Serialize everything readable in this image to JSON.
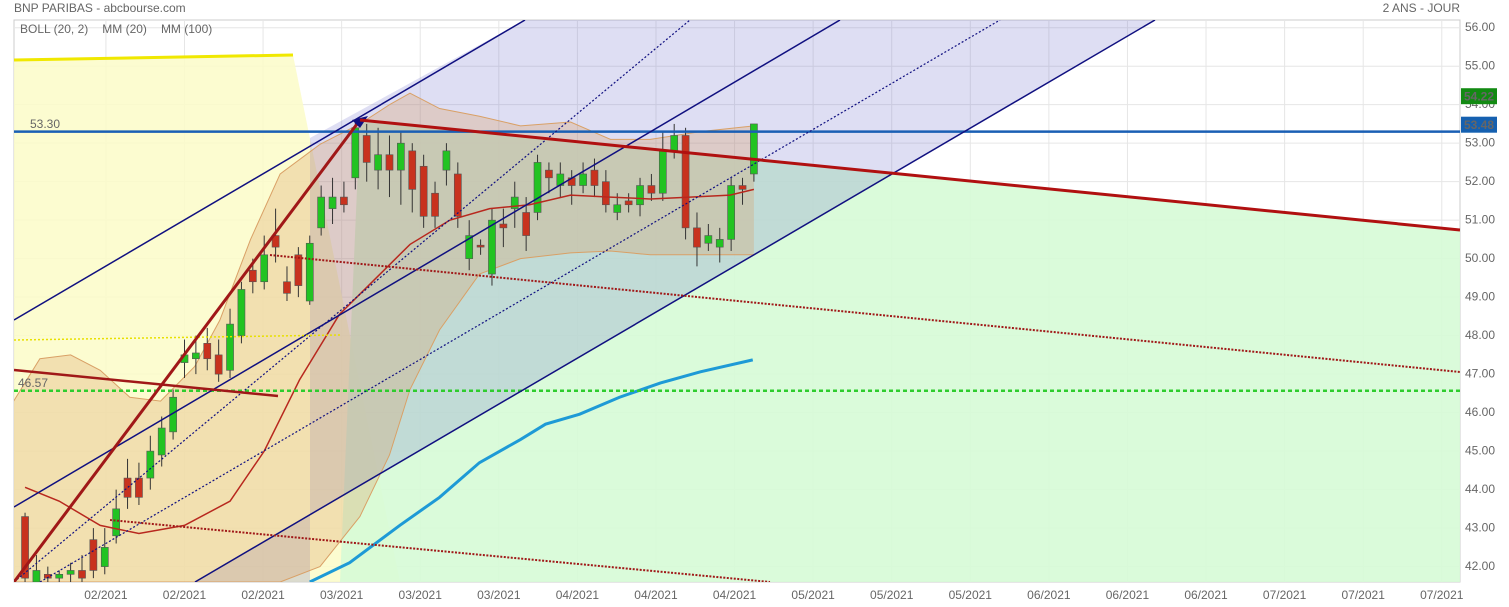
{
  "chart_data": {
    "type": "candlestick",
    "title": "BNP PARIBAS - abcbourse.com",
    "subtitle": "2 ANS - JOUR",
    "up_color": "#22c322",
    "down_color": "#c8321e",
    "open": [
      43.3,
      41.6,
      41.8,
      41.7,
      41.8,
      41.9,
      42.7,
      42.0,
      42.8,
      44.3,
      44.3,
      44.3,
      44.9,
      45.5,
      47.3,
      47.4,
      47.8,
      47.5,
      47.1,
      48.0,
      49.7,
      49.4,
      50.6,
      49.4,
      50.1,
      48.9,
      50.8,
      51.3,
      51.6,
      52.1,
      53.2,
      52.3,
      52.7,
      52.3,
      52.8,
      52.4,
      51.7,
      52.3,
      52.2,
      50.0,
      50.35,
      49.6,
      50.9,
      51.3,
      51.2,
      51.2,
      52.3,
      51.9,
      52.1,
      51.9,
      52.3,
      52.0,
      51.2,
      51.5,
      51.4,
      51.9,
      51.7,
      52.8,
      53.2,
      50.8,
      50.4,
      50.3,
      50.5,
      51.9,
      52.2
    ],
    "high": [
      43.4,
      42.3,
      42.0,
      41.9,
      42.1,
      42.3,
      43.0,
      43.0,
      44.0,
      44.8,
      44.7,
      45.4,
      45.9,
      46.6,
      47.9,
      48.0,
      48.2,
      47.9,
      48.7,
      49.4,
      50.0,
      50.6,
      51.3,
      49.8,
      50.3,
      50.6,
      51.9,
      52.1,
      52.0,
      53.6,
      53.5,
      53.4,
      53.2,
      53.3,
      53.0,
      52.7,
      52.0,
      53.0,
      52.5,
      51.0,
      50.5,
      51.3,
      51.3,
      52.0,
      51.6,
      52.7,
      52.5,
      52.5,
      52.3,
      52.5,
      52.6,
      52.3,
      51.7,
      51.7,
      52.1,
      52.2,
      53.3,
      53.5,
      53.4,
      51.2,
      50.9,
      50.8,
      52.1,
      52.1,
      53.5
    ],
    "low": [
      41.6,
      41.6,
      41.6,
      41.6,
      41.6,
      41.6,
      41.7,
      41.8,
      42.6,
      43.5,
      43.6,
      44.0,
      44.6,
      45.3,
      46.9,
      47.0,
      47.1,
      46.8,
      46.9,
      47.8,
      49.1,
      49.2,
      49.9,
      48.9,
      49.0,
      48.8,
      50.6,
      50.9,
      51.2,
      51.8,
      52.0,
      51.8,
      51.6,
      51.4,
      51.2,
      50.8,
      50.8,
      51.9,
      50.8,
      49.7,
      50.1,
      49.3,
      50.3,
      50.8,
      50.2,
      51.0,
      51.7,
      51.6,
      51.4,
      51.7,
      51.6,
      51.2,
      51.0,
      51.2,
      51.1,
      51.5,
      51.5,
      52.6,
      50.5,
      49.8,
      50.2,
      49.9,
      50.2,
      51.4,
      52.0
    ],
    "close": [
      41.7,
      41.9,
      41.7,
      41.8,
      41.9,
      41.7,
      41.9,
      42.5,
      43.5,
      43.8,
      43.8,
      45.0,
      45.6,
      46.4,
      47.5,
      47.55,
      47.4,
      47.0,
      48.3,
      49.2,
      49.4,
      50.1,
      50.3,
      49.1,
      49.3,
      50.4,
      51.6,
      51.6,
      51.4,
      53.4,
      52.5,
      52.7,
      52.3,
      53.0,
      51.8,
      51.1,
      51.1,
      52.8,
      51.1,
      50.6,
      50.3,
      51.0,
      50.8,
      51.6,
      50.6,
      52.5,
      52.1,
      52.2,
      51.9,
      52.2,
      51.9,
      51.4,
      51.4,
      51.4,
      51.9,
      51.7,
      52.8,
      53.2,
      50.8,
      50.3,
      50.6,
      50.5,
      51.9,
      51.8,
      53.5
    ],
    "series": [
      {
        "name": "BOLL (20, 2)",
        "color": "#d9a066",
        "x": [
          -1,
          1.3,
          4,
          6.6,
          9.2,
          11.9,
          14.9,
          17.1,
          19.8,
          22.4,
          25.9,
          29.4,
          32,
          33.8,
          36.4,
          39.9,
          43.5,
          47.9,
          51.4,
          54.9,
          59.3,
          64
        ],
        "upper": [
          46.3,
          47.4,
          47.5,
          47.1,
          46.4,
          46.3,
          47.2,
          48.4,
          50.5,
          52.2,
          52.97,
          53.5,
          54.0,
          54.3,
          53.9,
          53.7,
          53.45,
          53.55,
          53.1,
          53.1,
          53.3,
          53.45
        ],
        "lower": [
          41.6,
          41.6,
          41.6,
          41.6,
          41.6,
          41.6,
          41.6,
          41.6,
          41.6,
          41.6,
          42.0,
          43.3,
          44.9,
          46.6,
          48.15,
          49.6,
          50.0,
          50.15,
          50.2,
          50.1,
          50.1,
          50.1
        ]
      },
      {
        "name": "MM (20)",
        "color": "#b8281e",
        "x": [
          0,
          3,
          6.6,
          10,
          14,
          18,
          21,
          24.1,
          27.6,
          30.7,
          33.8,
          37.3,
          40.8,
          44.3,
          47.9,
          51.4,
          54.9,
          58.4,
          61.9,
          64
        ],
        "values": [
          44.06,
          43.7,
          43.07,
          42.86,
          43.07,
          43.7,
          45.0,
          46.85,
          48.55,
          49.46,
          50.37,
          51.0,
          51.3,
          51.4,
          51.65,
          51.6,
          51.55,
          51.6,
          51.65,
          51.8
        ]
      },
      {
        "name": "MM (100)",
        "color": "#1e9ad6",
        "x": [
          25,
          28.5,
          32.9,
          36.4,
          39.9,
          43.5,
          45.7,
          48.7,
          52.2,
          55.8,
          59.3,
          63.9
        ],
        "values": [
          41.6,
          42.1,
          43.07,
          43.8,
          44.7,
          45.3,
          45.7,
          45.96,
          46.4,
          46.77,
          47.06,
          47.37
        ]
      }
    ],
    "levels": [
      {
        "value": 53.3,
        "label": "53.30",
        "color": "#1a5fb4",
        "dashed": false
      },
      {
        "value": 46.57,
        "label": "46.57",
        "color": "#2ecc2e",
        "dashed": true
      }
    ],
    "markers": [
      {
        "value": 54.22,
        "label": "54.22",
        "color": "#128a12"
      },
      {
        "value": 53.48,
        "label": "53.48",
        "color": "#1560b0"
      }
    ],
    "xlim": [
      -0.97,
      126
    ],
    "xticks": [
      {
        "value": 7.1,
        "label": "02/2021"
      },
      {
        "value": 14.0,
        "label": "02/2021"
      },
      {
        "value": 20.9,
        "label": "02/2021"
      },
      {
        "value": 27.8,
        "label": "03/2021"
      },
      {
        "value": 34.7,
        "label": "03/2021"
      },
      {
        "value": 41.6,
        "label": "03/2021"
      },
      {
        "value": 48.5,
        "label": "04/2021"
      },
      {
        "value": 55.4,
        "label": "04/2021"
      },
      {
        "value": 62.3,
        "label": "04/2021"
      },
      {
        "value": 69.2,
        "label": "05/2021"
      },
      {
        "value": 76.1,
        "label": "05/2021"
      },
      {
        "value": 83.0,
        "label": "05/2021"
      },
      {
        "value": 89.9,
        "label": "06/2021"
      },
      {
        "value": 96.8,
        "label": "06/2021"
      },
      {
        "value": 103.7,
        "label": "06/2021"
      },
      {
        "value": 110.6,
        "label": "07/2021"
      },
      {
        "value": 117.5,
        "label": "07/2021"
      },
      {
        "value": 124.4,
        "label": "07/2021"
      }
    ],
    "ylim": [
      41.6,
      56.2
    ],
    "yticks": [
      {
        "value": 42,
        "label": "42.00"
      },
      {
        "value": 43,
        "label": "43.00"
      },
      {
        "value": 44,
        "label": "44.00"
      },
      {
        "value": 45,
        "label": "45.00"
      },
      {
        "value": 46,
        "label": "46.00"
      },
      {
        "value": 47,
        "label": "47.00"
      },
      {
        "value": 48,
        "label": "48.00"
      },
      {
        "value": 49,
        "label": "49.00"
      },
      {
        "value": 50,
        "label": "50.00"
      },
      {
        "value": 51,
        "label": "51.00"
      },
      {
        "value": 52,
        "label": "52.00"
      },
      {
        "value": 53,
        "label": "53.00"
      },
      {
        "value": 54,
        "label": "54.00"
      },
      {
        "value": 55,
        "label": "55.00"
      },
      {
        "value": 56,
        "label": "56.00"
      }
    ],
    "grid": true
  }
}
